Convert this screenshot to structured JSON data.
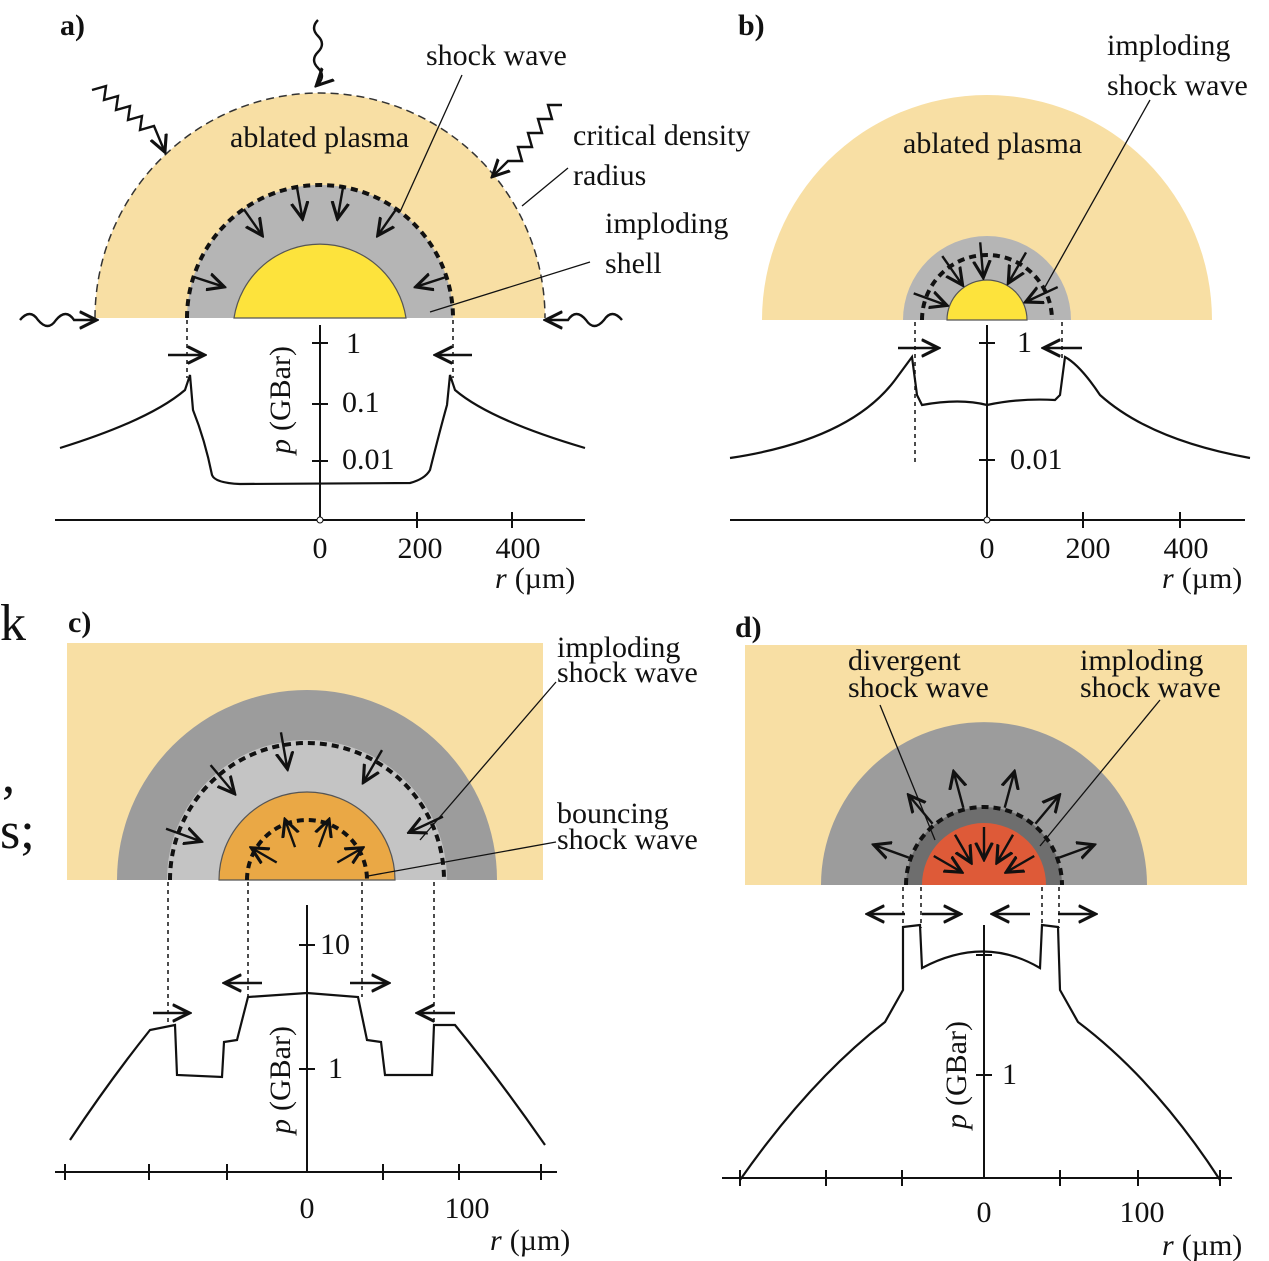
{
  "margin_fragments": [
    "k",
    ",",
    "s;"
  ],
  "panels": [
    {
      "label": "a)",
      "annotations": [
        "shock wave",
        "ablated plasma",
        "critical density",
        "radius",
        "imploding",
        "shell"
      ],
      "y_axis_symbol": "p",
      "y_axis_unit": "(GBar)",
      "y_ticks": [
        "1",
        "0.1",
        "0.01"
      ],
      "x_ticks": [
        "0",
        "200",
        "400"
      ],
      "x_axis_symbol": "r",
      "x_axis_unit": "(µm)"
    },
    {
      "label": "b)",
      "annotations": [
        "imploding",
        "shock wave",
        "ablated plasma"
      ],
      "y_ticks": [
        "1",
        "0.01"
      ],
      "x_ticks": [
        "0",
        "200",
        "400"
      ],
      "x_axis_symbol": "r",
      "x_axis_unit": "(µm)"
    },
    {
      "label": "c)",
      "annotations": [
        "imploding",
        "shock wave",
        "bouncing",
        "shock wave"
      ],
      "y_axis_symbol": "p",
      "y_axis_unit": "(GBar)",
      "y_ticks": [
        "10",
        "1"
      ],
      "x_ticks": [
        "0",
        "100"
      ],
      "x_axis_symbol": "r",
      "x_axis_unit": "(µm)"
    },
    {
      "label": "d)",
      "annotations": [
        "divergent",
        "shock wave",
        "imploding",
        "shock wave"
      ],
      "y_axis_symbol": "p",
      "y_axis_unit": "(GBar)",
      "y_ticks": [
        "1"
      ],
      "x_ticks": [
        "0",
        "100"
      ],
      "x_axis_symbol": "r",
      "x_axis_unit": "(µm)"
    }
  ]
}
